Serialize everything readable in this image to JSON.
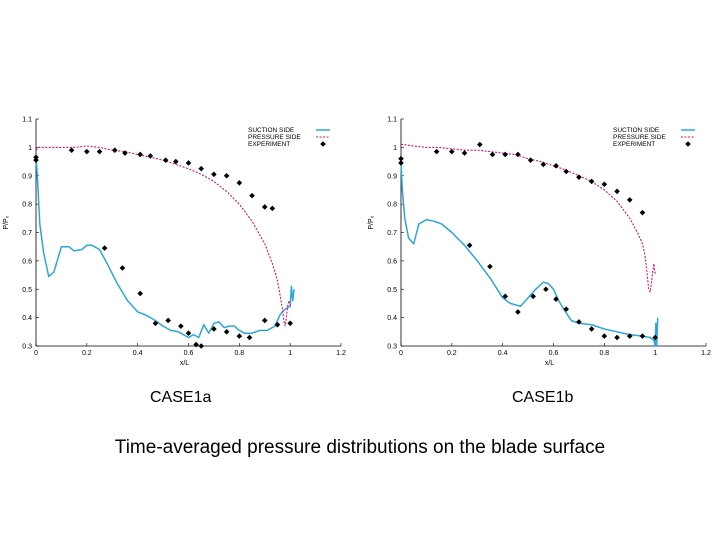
{
  "caption": "Time-averaged pressure distributions on the blade surface",
  "colors": {
    "suction": "#2aa7d8",
    "pressure": "#d4146b",
    "experiment": "#000000",
    "axis": "#000000"
  },
  "chart_data": [
    {
      "type": "line",
      "case_label": "CASE1a",
      "xlabel": "x/L",
      "ylabel": "P/P₀",
      "xlim": [
        0,
        1.2
      ],
      "ylim": [
        0.3,
        1.1
      ],
      "xticks": [
        "0",
        "0.2",
        "0.4",
        "0.6",
        "0.8",
        "1",
        "1.2"
      ],
      "yticks": [
        "0.3",
        "0.4",
        "0.5",
        "0.6",
        "0.7",
        "0.8",
        "0.9",
        "1",
        "1.1"
      ],
      "grid": false,
      "legend_position": "top-right",
      "series": [
        {
          "name": "SUCTION SIDE",
          "style": "solid",
          "x": [
            0.0,
            0.005,
            0.015,
            0.03,
            0.05,
            0.07,
            0.1,
            0.13,
            0.15,
            0.18,
            0.2,
            0.22,
            0.25,
            0.28,
            0.32,
            0.36,
            0.4,
            0.43,
            0.46,
            0.5,
            0.53,
            0.56,
            0.6,
            0.62,
            0.64,
            0.66,
            0.68,
            0.7,
            0.72,
            0.74,
            0.76,
            0.78,
            0.8,
            0.82,
            0.85,
            0.88,
            0.91,
            0.94,
            0.96,
            0.98,
            1.0,
            1.005,
            1.01,
            1.015
          ],
          "y": [
            0.97,
            0.9,
            0.73,
            0.63,
            0.545,
            0.56,
            0.65,
            0.65,
            0.635,
            0.64,
            0.655,
            0.655,
            0.64,
            0.59,
            0.52,
            0.46,
            0.42,
            0.41,
            0.395,
            0.37,
            0.355,
            0.35,
            0.33,
            0.34,
            0.33,
            0.375,
            0.345,
            0.38,
            0.385,
            0.365,
            0.37,
            0.37,
            0.355,
            0.345,
            0.345,
            0.355,
            0.355,
            0.37,
            0.41,
            0.43,
            0.44,
            0.51,
            0.46,
            0.5
          ]
        },
        {
          "name": "PRESSURE SIDE",
          "style": "dashed",
          "x": [
            0.0,
            0.01,
            0.05,
            0.1,
            0.15,
            0.2,
            0.25,
            0.3,
            0.35,
            0.4,
            0.45,
            0.5,
            0.55,
            0.6,
            0.65,
            0.7,
            0.75,
            0.8,
            0.85,
            0.9,
            0.93,
            0.95,
            0.96,
            0.97,
            0.975,
            0.98,
            0.985,
            0.99,
            0.995,
            1.0
          ],
          "y": [
            0.99,
            1.0,
            1.0,
            1.0,
            1.0,
            1.005,
            1.0,
            0.99,
            0.985,
            0.975,
            0.965,
            0.955,
            0.94,
            0.925,
            0.905,
            0.88,
            0.845,
            0.8,
            0.74,
            0.66,
            0.59,
            0.53,
            0.48,
            0.43,
            0.39,
            0.37,
            0.4,
            0.44,
            0.46,
            0.44
          ]
        }
      ],
      "experiment": {
        "name": "EXPERIMENT",
        "x": [
          0.0,
          0.0,
          0.14,
          0.2,
          0.25,
          0.31,
          0.35,
          0.41,
          0.45,
          0.51,
          0.55,
          0.6,
          0.65,
          0.7,
          0.75,
          0.8,
          0.85,
          0.9,
          0.93,
          0.27,
          0.34,
          0.41,
          0.47,
          0.52,
          0.57,
          0.6,
          0.63,
          0.65,
          0.7,
          0.75,
          0.8,
          0.84,
          0.9,
          0.95,
          1.0
        ],
        "y": [
          0.965,
          0.955,
          0.99,
          0.985,
          0.985,
          0.99,
          0.98,
          0.975,
          0.97,
          0.955,
          0.95,
          0.945,
          0.925,
          0.905,
          0.9,
          0.875,
          0.83,
          0.79,
          0.785,
          0.645,
          0.575,
          0.485,
          0.38,
          0.39,
          0.37,
          0.345,
          0.305,
          0.3,
          0.36,
          0.35,
          0.335,
          0.33,
          0.39,
          0.375,
          0.38
        ]
      }
    },
    {
      "type": "line",
      "case_label": "CASE1b",
      "xlabel": "x/L",
      "ylabel": "P/P₀",
      "xlim": [
        0,
        1.2
      ],
      "ylim": [
        0.3,
        1.1
      ],
      "xticks": [
        "0",
        "0.2",
        "0.4",
        "0.6",
        "0.8",
        "1",
        "1.2"
      ],
      "yticks": [
        "0.3",
        "0.4",
        "0.5",
        "0.6",
        "0.7",
        "0.8",
        "0.9",
        "1",
        "1.1"
      ],
      "grid": false,
      "legend_position": "top-right",
      "series": [
        {
          "name": "SUCTION SIDE",
          "style": "solid",
          "x": [
            0.0,
            0.005,
            0.015,
            0.03,
            0.05,
            0.07,
            0.1,
            0.13,
            0.16,
            0.2,
            0.25,
            0.3,
            0.35,
            0.4,
            0.43,
            0.47,
            0.5,
            0.53,
            0.56,
            0.58,
            0.6,
            0.62,
            0.64,
            0.67,
            0.7,
            0.75,
            0.8,
            0.85,
            0.9,
            0.95,
            0.98,
            0.995,
            1.0,
            1.003,
            1.006,
            1.01
          ],
          "y": [
            0.95,
            0.85,
            0.75,
            0.68,
            0.66,
            0.73,
            0.745,
            0.74,
            0.73,
            0.7,
            0.655,
            0.6,
            0.54,
            0.47,
            0.45,
            0.44,
            0.47,
            0.5,
            0.525,
            0.52,
            0.5,
            0.46,
            0.43,
            0.39,
            0.38,
            0.375,
            0.36,
            0.35,
            0.34,
            0.335,
            0.33,
            0.32,
            0.3,
            0.38,
            0.3,
            0.4
          ]
        },
        {
          "name": "PRESSURE SIDE",
          "style": "dashed",
          "x": [
            0.0,
            0.01,
            0.05,
            0.1,
            0.15,
            0.2,
            0.25,
            0.3,
            0.35,
            0.4,
            0.45,
            0.5,
            0.55,
            0.6,
            0.65,
            0.7,
            0.75,
            0.8,
            0.85,
            0.9,
            0.93,
            0.95,
            0.96,
            0.965,
            0.97,
            0.975,
            0.98,
            0.985,
            0.99,
            0.995,
            1.0
          ],
          "y": [
            1.01,
            1.01,
            1.005,
            1.0,
            1.0,
            0.995,
            0.99,
            0.99,
            0.985,
            0.98,
            0.975,
            0.96,
            0.95,
            0.935,
            0.92,
            0.9,
            0.88,
            0.85,
            0.81,
            0.75,
            0.7,
            0.66,
            0.62,
            0.58,
            0.54,
            0.5,
            0.49,
            0.52,
            0.56,
            0.59,
            0.55
          ]
        }
      ],
      "experiment": {
        "name": "EXPERIMENT",
        "x": [
          0.0,
          0.0,
          0.14,
          0.2,
          0.25,
          0.31,
          0.36,
          0.41,
          0.46,
          0.51,
          0.56,
          0.61,
          0.65,
          0.7,
          0.75,
          0.8,
          0.85,
          0.9,
          0.95,
          0.27,
          0.35,
          0.41,
          0.46,
          0.52,
          0.57,
          0.61,
          0.65,
          0.7,
          0.75,
          0.8,
          0.85,
          0.9,
          0.95,
          1.0
        ],
        "y": [
          0.96,
          0.945,
          0.985,
          0.985,
          0.98,
          1.01,
          0.975,
          0.975,
          0.975,
          0.955,
          0.94,
          0.935,
          0.915,
          0.895,
          0.88,
          0.87,
          0.845,
          0.815,
          0.77,
          0.655,
          0.58,
          0.475,
          0.42,
          0.475,
          0.5,
          0.465,
          0.43,
          0.385,
          0.36,
          0.335,
          0.33,
          0.335,
          0.335,
          0.33
        ]
      }
    }
  ]
}
